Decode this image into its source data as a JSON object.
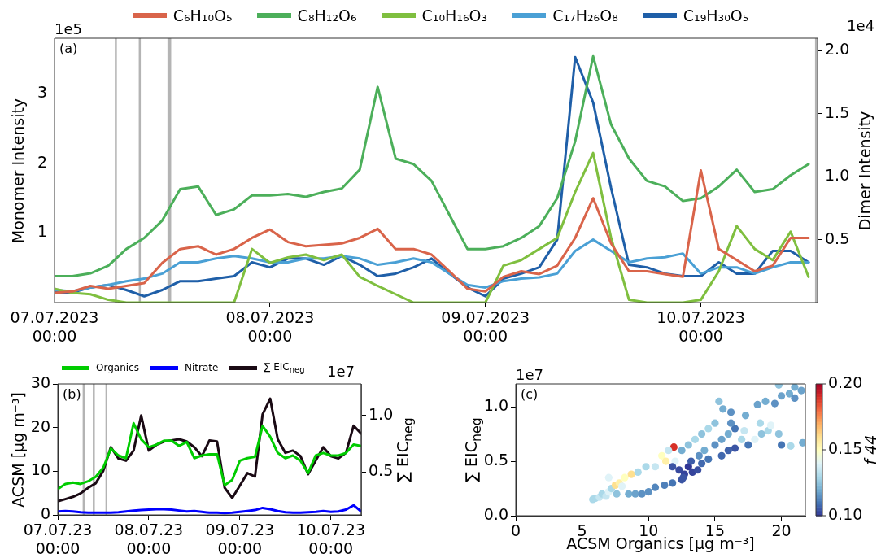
{
  "chart_data": [
    {
      "type": "line",
      "annotations": [
        "(a)",
        "1e5",
        "1e4"
      ],
      "ylabel": "Monomer Intensity",
      "y2label": "Dimer Intensity",
      "legend": "top",
      "x": [
        "2023-07-07T00:00",
        "2023-07-07T02:00",
        "2023-07-07T04:00",
        "2023-07-07T06:00",
        "2023-07-07T08:00",
        "2023-07-07T10:00",
        "2023-07-07T12:00",
        "2023-07-07T14:00",
        "2023-07-07T16:00",
        "2023-07-07T18:00",
        "2023-07-07T20:00",
        "2023-07-07T22:00",
        "2023-07-08T00:00",
        "2023-07-08T02:00",
        "2023-07-08T04:00",
        "2023-07-08T06:00",
        "2023-07-08T08:00",
        "2023-07-08T10:00",
        "2023-07-08T12:00",
        "2023-07-08T14:00",
        "2023-07-08T16:00",
        "2023-07-08T18:00",
        "2023-07-08T20:00",
        "2023-07-08T22:00",
        "2023-07-09T00:00",
        "2023-07-09T02:00",
        "2023-07-09T04:00",
        "2023-07-09T06:00",
        "2023-07-09T08:00",
        "2023-07-09T10:00",
        "2023-07-09T12:00",
        "2023-07-09T14:00",
        "2023-07-09T16:00",
        "2023-07-09T18:00",
        "2023-07-09T20:00",
        "2023-07-09T22:00",
        "2023-07-10T00:00",
        "2023-07-10T02:00",
        "2023-07-10T04:00",
        "2023-07-10T06:00",
        "2023-07-10T08:00",
        "2023-07-10T10:00",
        "2023-07-10T12:00"
      ],
      "xlim": [
        "2023-07-07T00:00",
        "2023-07-10T13:00"
      ],
      "xticks": [
        {
          "value": "2023-07-07T00:00",
          "label": "07.07.2023 00:00"
        },
        {
          "value": "2023-07-08T00:00",
          "label": "08.07.2023 00:00"
        },
        {
          "value": "2023-07-09T00:00",
          "label": "09.07.2023 00:00"
        },
        {
          "value": "2023-07-10T00:00",
          "label": "10.07.2023 00:00"
        }
      ],
      "ylim": [
        0,
        3.8
      ],
      "yticks": [
        1,
        2,
        3
      ],
      "y2lim": [
        0,
        2.1
      ],
      "y2ticks": [
        {
          "value": 0.5,
          "label": "0.5"
        },
        {
          "value": 1,
          "label": "1.0"
        },
        {
          "value": 1.5,
          "label": "1.5"
        },
        {
          "value": 2,
          "label": "2.0"
        }
      ],
      "ref_lines": [
        {
          "axis": "x",
          "value": "2023-07-07T06:50",
          "color": "#b4b4b4"
        },
        {
          "axis": "x",
          "value": "2023-07-07T09:30",
          "color": "#b4b4b4"
        },
        {
          "axis": "x",
          "value": "2023-07-10T12:50",
          "color": "#b4b4b4"
        }
      ],
      "bands": [
        {
          "axis": "x",
          "from": "2023-07-07T12:35",
          "to": "2023-07-07T13:00",
          "color": "#b4b4b4"
        }
      ],
      "series": [
        {
          "name": "C₆H₁₀O₅",
          "color": "#d9644a",
          "values": [
            0.14,
            0.16,
            0.24,
            0.2,
            0.24,
            0.28,
            0.57,
            0.77,
            0.81,
            0.69,
            0.77,
            0.93,
            1.05,
            0.87,
            0.81,
            0.83,
            0.85,
            0.93,
            1.06,
            0.77,
            0.77,
            0.69,
            0.45,
            0.2,
            0.16,
            0.37,
            0.45,
            0.41,
            0.53,
            0.93,
            1.5,
            0.85,
            0.45,
            0.45,
            0.41,
            0.37,
            1.9,
            0.77,
            0.61,
            0.45,
            0.53,
            0.93,
            0.93
          ]
        },
        {
          "name": "C₈H₁₂O₆",
          "color": "#4caf5a",
          "values": [
            0.38,
            0.38,
            0.42,
            0.53,
            0.77,
            0.93,
            1.18,
            1.63,
            1.67,
            1.26,
            1.34,
            1.54,
            1.54,
            1.56,
            1.52,
            1.59,
            1.64,
            1.91,
            3.1,
            2.07,
            1.99,
            1.75,
            1.26,
            0.77,
            0.77,
            0.81,
            0.93,
            1.1,
            1.5,
            2.32,
            3.54,
            2.56,
            2.07,
            1.75,
            1.67,
            1.46,
            1.5,
            1.67,
            1.91,
            1.59,
            1.63,
            1.83,
            1.99
          ]
        },
        {
          "name": "C₁₀H₁₆O₃",
          "color": "#7fbf3f",
          "values": [
            0.2,
            0.14,
            0.12,
            0.04,
            0,
            0,
            0,
            0,
            0,
            0,
            0,
            0.77,
            0.57,
            0.65,
            0.69,
            0.61,
            0.69,
            0.37,
            0.24,
            0.12,
            0,
            0,
            0,
            0,
            0,
            0.53,
            0.61,
            0.77,
            0.93,
            1.59,
            2.15,
            0.93,
            0.04,
            0,
            0,
            0,
            0.04,
            0.45,
            1.1,
            0.77,
            0.61,
            1.02,
            0.37
          ]
        },
        {
          "name": "C₁₇H₂₆O₈",
          "color": "#4aa0d5",
          "axis": "y2",
          "values": [
            0.1,
            0.09,
            0.12,
            0.14,
            0.17,
            0.19,
            0.23,
            0.32,
            0.32,
            0.35,
            0.37,
            0.35,
            0.32,
            0.32,
            0.35,
            0.35,
            0.37,
            0.35,
            0.3,
            0.32,
            0.35,
            0.32,
            0.23,
            0.14,
            0.12,
            0.17,
            0.19,
            0.2,
            0.23,
            0.41,
            0.5,
            0.41,
            0.32,
            0.35,
            0.36,
            0.39,
            0.23,
            0.28,
            0.28,
            0.23,
            0.28,
            0.32,
            0.32
          ]
        },
        {
          "name": "C₁₉H₃₀O₅",
          "color": "#1f5fa8",
          "axis": "y2",
          "values": [
            0.08,
            0.08,
            0.12,
            0.14,
            0.1,
            0.05,
            0.1,
            0.17,
            0.17,
            0.19,
            0.21,
            0.32,
            0.28,
            0.35,
            0.35,
            0.3,
            0.37,
            0.3,
            0.21,
            0.23,
            0.28,
            0.35,
            0.23,
            0.12,
            0.05,
            0.19,
            0.23,
            0.28,
            0.5,
            1.95,
            1.59,
            0.91,
            0.3,
            0.28,
            0.23,
            0.21,
            0.21,
            0.32,
            0.23,
            0.23,
            0.41,
            0.41,
            0.32
          ]
        }
      ]
    },
    {
      "type": "line",
      "annotations": [
        "(b)",
        "1e7"
      ],
      "ylabel": "ACSM [µg m⁻³]",
      "y2label": "∑ EIC$_{neg}$",
      "legend": "top",
      "x": [
        "2023-07-07T00:00",
        "2023-07-07T02:00",
        "2023-07-07T04:00",
        "2023-07-07T06:00",
        "2023-07-07T08:00",
        "2023-07-07T10:00",
        "2023-07-07T12:00",
        "2023-07-07T14:00",
        "2023-07-07T16:00",
        "2023-07-07T18:00",
        "2023-07-07T20:00",
        "2023-07-07T22:00",
        "2023-07-08T00:00",
        "2023-07-08T02:00",
        "2023-07-08T04:00",
        "2023-07-08T06:00",
        "2023-07-08T08:00",
        "2023-07-08T10:00",
        "2023-07-08T12:00",
        "2023-07-08T14:00",
        "2023-07-08T16:00",
        "2023-07-08T18:00",
        "2023-07-08T20:00",
        "2023-07-08T22:00",
        "2023-07-09T00:00",
        "2023-07-09T02:00",
        "2023-07-09T04:00",
        "2023-07-09T06:00",
        "2023-07-09T08:00",
        "2023-07-09T10:00",
        "2023-07-09T12:00",
        "2023-07-09T14:00",
        "2023-07-09T16:00",
        "2023-07-09T18:00",
        "2023-07-09T20:00",
        "2023-07-09T22:00",
        "2023-07-10T00:00",
        "2023-07-10T02:00",
        "2023-07-10T04:00",
        "2023-07-10T06:00",
        "2023-07-10T08:00"
      ],
      "xlim": [
        "2023-07-07T00:00",
        "2023-07-10T08:00"
      ],
      "xticks": [
        {
          "value": "2023-07-07T00:00",
          "label": "07.07.23 00:00"
        },
        {
          "value": "2023-07-08T00:00",
          "label": "08.07.23 00:00"
        },
        {
          "value": "2023-07-09T00:00",
          "label": "09.07.23 00:00"
        },
        {
          "value": "2023-07-10T00:00",
          "label": "10.07.23 00:00"
        }
      ],
      "ylim": [
        0,
        30
      ],
      "yticks": [
        0,
        10,
        20,
        30
      ],
      "y2lim": [
        0.12,
        1.28
      ],
      "y2ticks": [
        {
          "value": 0.5,
          "label": "0.5"
        },
        {
          "value": 1,
          "label": "1.0"
        }
      ],
      "ref_lines": [
        {
          "axis": "x",
          "value": "2023-07-07T06:50",
          "color": "#b4b4b4"
        },
        {
          "axis": "x",
          "value": "2023-07-07T09:30",
          "color": "#b4b4b4"
        },
        {
          "axis": "x",
          "value": "2023-07-10T07:50",
          "color": "#b4b4b4"
        }
      ],
      "bands": [
        {
          "axis": "x",
          "from": "2023-07-07T12:35",
          "to": "2023-07-07T13:00",
          "color": "#b4b4b4"
        }
      ],
      "series": [
        {
          "name": "Organics",
          "color": "#00cc00",
          "values": [
            5.9,
            7.1,
            7.4,
            7.1,
            7.7,
            8.7,
            10.8,
            15.2,
            13.6,
            13.0,
            21.0,
            17.3,
            15.5,
            16.1,
            17.0,
            17.0,
            15.8,
            16.7,
            13.0,
            13.6,
            13.9,
            13.9,
            6.8,
            8.0,
            12.4,
            13.0,
            13.3,
            20.4,
            17.9,
            14.2,
            13.0,
            13.6,
            12.4,
            9.6,
            13.6,
            14.2,
            13.6,
            13.6,
            14.2,
            16.1,
            15.8
          ]
        },
        {
          "name": "Nitrate",
          "color": "#0000ff",
          "values": [
            0.8,
            0.9,
            0.8,
            0.6,
            0.5,
            0.5,
            0.5,
            0.5,
            0.6,
            0.8,
            1.0,
            1.1,
            1.2,
            1.3,
            1.3,
            1.2,
            1.0,
            0.8,
            0.9,
            0.7,
            0.5,
            0.5,
            0.4,
            0.5,
            0.7,
            0.9,
            1.1,
            1.6,
            1.3,
            0.9,
            0.6,
            0.5,
            0.5,
            0.6,
            0.7,
            0.9,
            0.7,
            0.8,
            1.2,
            2.2,
            0.8
          ]
        },
        {
          "name": "∑ EIC$_{neg}$",
          "color": "#1a0a14",
          "axis": "y2",
          "values": [
            0.24,
            0.26,
            0.28,
            0.31,
            0.36,
            0.4,
            0.51,
            0.72,
            0.62,
            0.6,
            0.69,
            1.0,
            0.69,
            0.74,
            0.77,
            0.78,
            0.79,
            0.77,
            0.72,
            0.64,
            0.78,
            0.77,
            0.36,
            0.27,
            0.38,
            0.49,
            0.46,
            1.01,
            1.15,
            0.79,
            0.67,
            0.69,
            0.64,
            0.48,
            0.6,
            0.72,
            0.64,
            0.62,
            0.67,
            0.91,
            0.84
          ]
        }
      ]
    },
    {
      "type": "scatter",
      "annotations": [
        "(c)",
        "1e7"
      ],
      "xlabel": "ACSM Organics [µg m⁻³]",
      "ylabel": "∑ EIC$_{neg}$",
      "clabel": "f 44",
      "marker": "circle",
      "xlim": [
        0,
        21.8
      ],
      "xticks": [
        0,
        5,
        10,
        15,
        20
      ],
      "ylim": [
        0,
        1.21
      ],
      "yticks": [
        {
          "value": 0,
          "label": "0.0"
        },
        {
          "value": 0.5,
          "label": "0.5"
        },
        {
          "value": 1,
          "label": "1.0"
        }
      ],
      "clim": [
        0.1,
        0.2
      ],
      "cticks": [
        {
          "value": 0.1,
          "label": "0.10"
        },
        {
          "value": 0.15,
          "label": "0.15"
        },
        {
          "value": 0.2,
          "label": "0.20"
        }
      ],
      "x": [
        5.8,
        6.0,
        6.3,
        6.5,
        6.8,
        7.0,
        7.2,
        7.5,
        7.8,
        8.0,
        8.2,
        7.0,
        7.6,
        8.5,
        9.0,
        9.5,
        10.0,
        10.5,
        11.2,
        11.8,
        12.5,
        8.7,
        9.2,
        9.8,
        10.5,
        11.0,
        11.3,
        11.9,
        12.0,
        11.5,
        11.8,
        12.3,
        12.7,
        13.0,
        13.3,
        13.7,
        12.6,
        13.2,
        14.0,
        12.5,
        13.0,
        13.5,
        14.0,
        14.5,
        15.0,
        14.2,
        15.0,
        15.5,
        16.0,
        16.5,
        17.0,
        15.5,
        16.0,
        16.5,
        17.5,
        13.8,
        14.5,
        17.2,
        16.2,
        15.3,
        15.6,
        16.2,
        17.3,
        18.2,
        18.8,
        19.5,
        20.0,
        20.6,
        21.0,
        21.5,
        21.0,
        19.8,
        18.0,
        18.5,
        19.0,
        19.8,
        20.0,
        20.7,
        21.6,
        18.4,
        19.2
      ],
      "values": [
        0.15,
        0.16,
        0.17,
        0.2,
        0.18,
        0.22,
        0.25,
        0.28,
        0.3,
        0.27,
        0.35,
        0.35,
        0.2,
        0.2,
        0.2,
        0.2,
        0.22,
        0.26,
        0.28,
        0.3,
        0.33,
        0.38,
        0.4,
        0.45,
        0.45,
        0.55,
        0.5,
        0.63,
        0.5,
        0.6,
        0.45,
        0.42,
        0.38,
        0.45,
        0.4,
        0.42,
        0.35,
        0.5,
        0.48,
        0.6,
        0.65,
        0.7,
        0.75,
        0.8,
        0.85,
        0.6,
        0.65,
        0.7,
        0.75,
        0.8,
        0.7,
        0.55,
        0.6,
        0.62,
        0.65,
        0.55,
        0.52,
        0.78,
        0.85,
        1.05,
        0.98,
        0.95,
        0.92,
        1.02,
        1.05,
        1.03,
        1.1,
        1.12,
        1.08,
        1.15,
        1.18,
        1.2,
        0.7,
        0.75,
        0.78,
        0.75,
        0.65,
        0.64,
        0.67,
        0.85,
        0.83
      ],
      "cvalues": [
        0.13,
        0.13,
        0.135,
        0.13,
        0.135,
        0.14,
        0.13,
        0.16,
        0.155,
        0.14,
        0.15,
        0.14,
        0.125,
        0.12,
        0.118,
        0.115,
        0.115,
        0.113,
        0.112,
        0.11,
        0.105,
        0.16,
        0.13,
        0.13,
        0.135,
        0.15,
        0.155,
        0.19,
        0.14,
        0.135,
        0.105,
        0.103,
        0.102,
        0.1,
        0.102,
        0.104,
        0.105,
        0.106,
        0.108,
        0.12,
        0.125,
        0.13,
        0.125,
        0.13,
        0.125,
        0.12,
        0.115,
        0.118,
        0.12,
        0.11,
        0.13,
        0.108,
        0.107,
        0.105,
        0.11,
        0.115,
        0.11,
        0.135,
        0.115,
        0.125,
        0.12,
        0.115,
        0.12,
        0.118,
        0.12,
        0.115,
        0.118,
        0.12,
        0.115,
        0.118,
        0.12,
        0.125,
        0.14,
        0.125,
        0.13,
        0.125,
        0.11,
        0.13,
        0.12,
        0.13,
        0.14
      ]
    }
  ]
}
